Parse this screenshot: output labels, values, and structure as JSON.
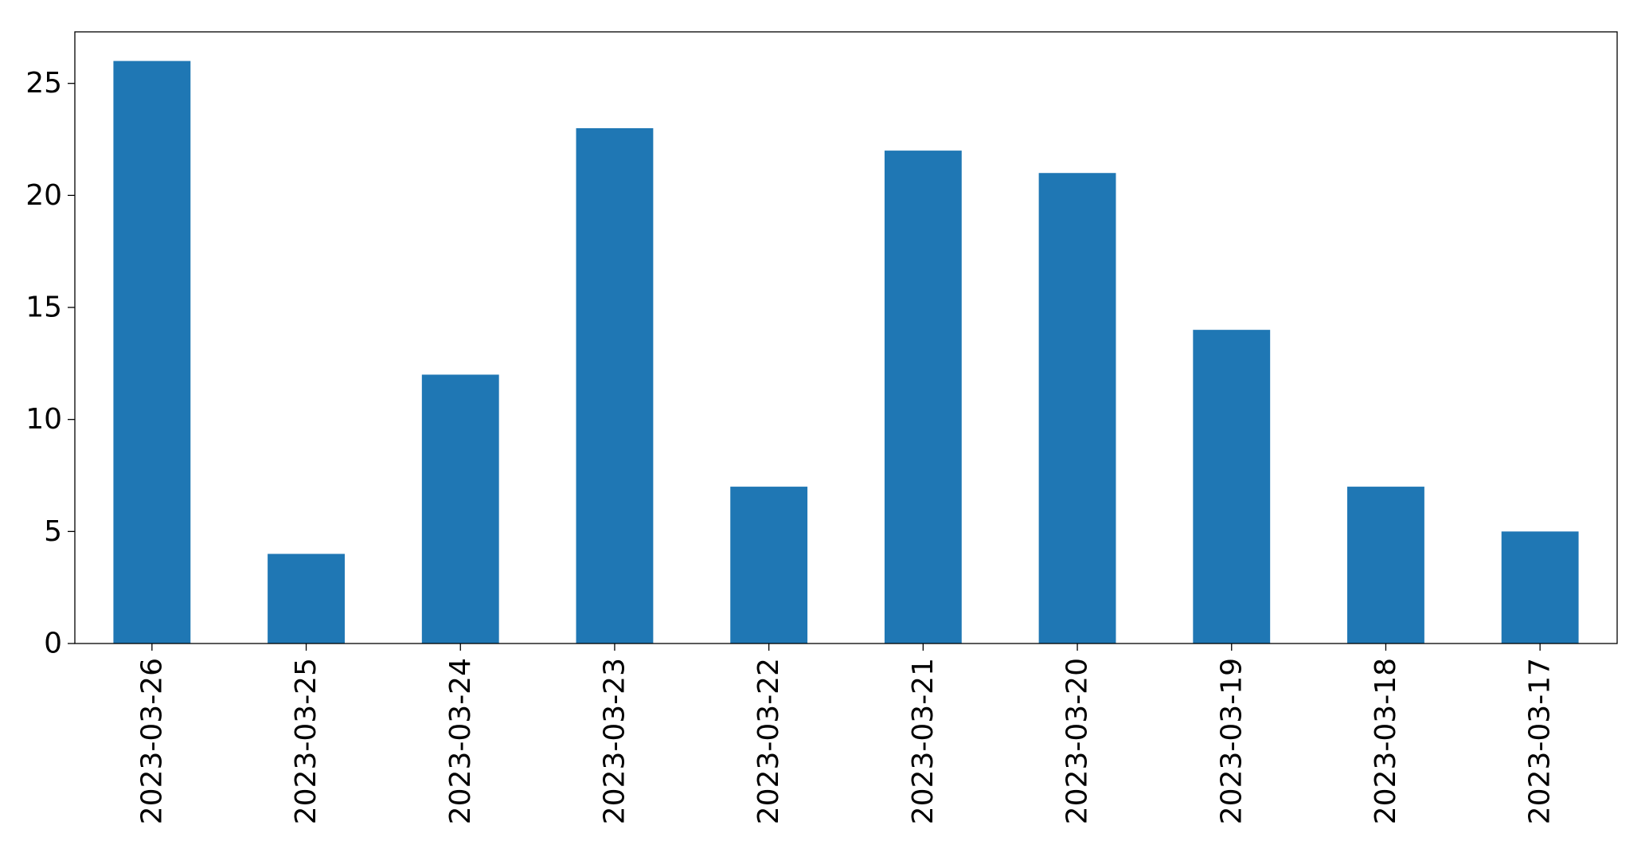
{
  "chart_data": {
    "type": "bar",
    "categories": [
      "2023-03-26",
      "2023-03-25",
      "2023-03-24",
      "2023-03-23",
      "2023-03-22",
      "2023-03-21",
      "2023-03-20",
      "2023-03-19",
      "2023-03-18",
      "2023-03-17"
    ],
    "values": [
      26,
      4,
      12,
      23,
      7,
      22,
      21,
      14,
      7,
      5
    ],
    "color": "#1f77b4",
    "ylim": [
      0,
      27.3
    ],
    "yticks": [
      0,
      5,
      10,
      15,
      20,
      25
    ],
    "grid": false
  }
}
